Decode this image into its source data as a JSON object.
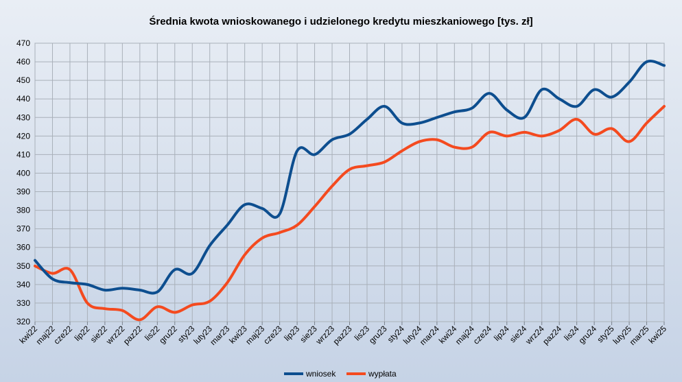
{
  "chart_data": {
    "type": "line",
    "title": "Średnia kwota wnioskowanego i udzielonego kredytu mieszkaniowego [tys. zł]",
    "xlabel": "",
    "ylabel": "",
    "ylim": [
      320,
      470
    ],
    "yticks": [
      320,
      330,
      340,
      350,
      360,
      370,
      380,
      390,
      400,
      410,
      420,
      430,
      440,
      450,
      460,
      470
    ],
    "grid": true,
    "legend": "bottom",
    "categories": [
      "kwi22",
      "maj22",
      "cze22",
      "lip22",
      "sie22",
      "wrz22",
      "paz22",
      "lis22",
      "gru22",
      "sty23",
      "luty23",
      "mar23",
      "kwi23",
      "maj23",
      "cze23",
      "lip23",
      "sie23",
      "wrz23",
      "paz23",
      "lis23",
      "gru23",
      "sty24",
      "luty24",
      "mar24",
      "kwi24",
      "maj24",
      "cze24",
      "lip24",
      "sie24",
      "wrz24",
      "paz24",
      "lis24",
      "gru24",
      "sty25",
      "luty25",
      "mar25",
      "kwi25"
    ],
    "series": [
      {
        "name": "wniosek",
        "color": "#0d4e8f",
        "values": [
          353,
          343,
          341,
          340,
          337,
          338,
          337,
          336,
          348,
          346,
          361,
          372,
          383,
          381,
          378,
          412,
          410,
          418,
          421,
          429,
          436,
          427,
          427,
          430,
          433,
          435,
          443,
          434,
          430,
          445,
          440,
          436,
          445,
          441,
          449,
          460,
          458
        ]
      },
      {
        "name": "wypłata",
        "color": "#f44a1f",
        "values": [
          350,
          346,
          348,
          330,
          327,
          326,
          321,
          328,
          325,
          329,
          331,
          341,
          356,
          365,
          368,
          372,
          382,
          393,
          402,
          404,
          406,
          412,
          417,
          418,
          414,
          414,
          422,
          420,
          422,
          420,
          423,
          429,
          421,
          424,
          417,
          427,
          436
        ]
      }
    ]
  }
}
